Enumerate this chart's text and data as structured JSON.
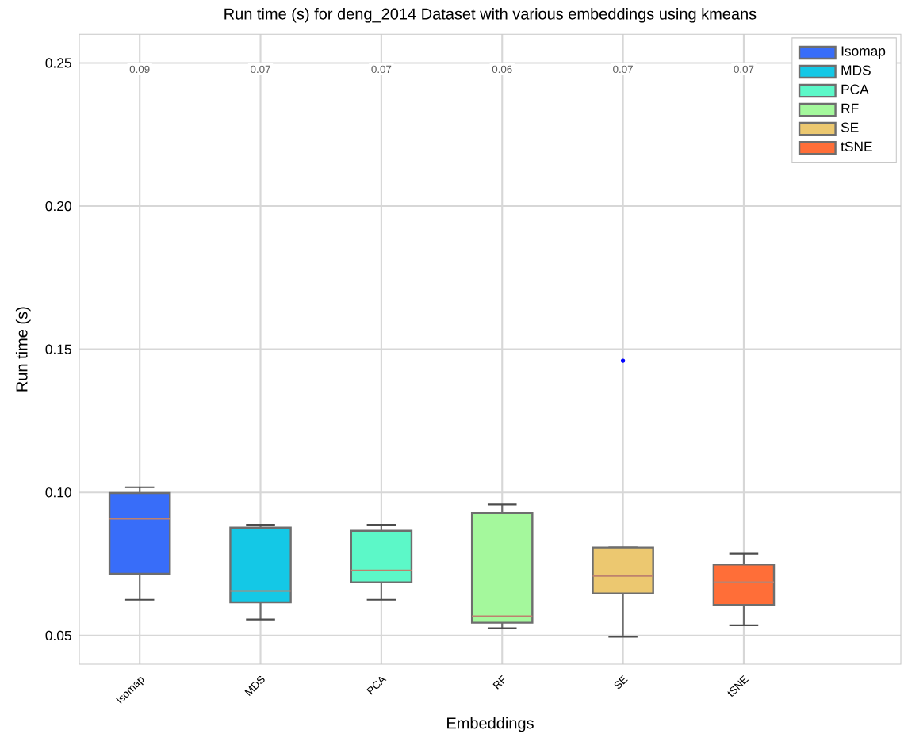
{
  "chart_data": {
    "type": "box",
    "title": "Run time (s) for deng_2014 Dataset with various embeddings using kmeans",
    "xlabel": "Embeddings",
    "ylabel": "Run time (s)",
    "categories": [
      "Isomap",
      "MDS",
      "PCA",
      "RF",
      "SE",
      "tSNE"
    ],
    "series": [
      {
        "name": "Isomap",
        "color": "#386df9",
        "boxes": [
          {
            "low": 0.0625,
            "q1": 0.0716,
            "median": 0.0908,
            "q3": 0.0998,
            "high": 0.1018
          },
          null,
          null,
          null,
          null,
          null
        ]
      },
      {
        "name": "MDS",
        "color": "#14c8e6",
        "boxes": [
          null,
          {
            "low": 0.0556,
            "q1": 0.0616,
            "median": 0.0656,
            "q3": 0.0877,
            "high": 0.0887
          },
          null,
          null,
          null,
          null
        ]
      },
      {
        "name": "PCA",
        "color": "#5cf8c8",
        "boxes": [
          null,
          null,
          {
            "low": 0.0625,
            "q1": 0.0686,
            "median": 0.0727,
            "q3": 0.0866,
            "high": 0.0887
          },
          null,
          null,
          null
        ]
      },
      {
        "name": "RF",
        "color": "#a4f89c",
        "boxes": [
          null,
          null,
          null,
          {
            "low": 0.0526,
            "q1": 0.0545,
            "median": 0.0567,
            "q3": 0.0928,
            "high": 0.0958
          },
          null,
          null
        ]
      },
      {
        "name": "SE",
        "color": "#ecc870",
        "boxes": [
          null,
          null,
          null,
          null,
          {
            "low": 0.0496,
            "q1": 0.0647,
            "median": 0.0708,
            "q3": 0.0808,
            "high": 0.0808,
            "outliers": [
              0.146
            ]
          },
          null
        ]
      },
      {
        "name": "tSNE",
        "color": "#ff6e38",
        "boxes": [
          null,
          null,
          null,
          null,
          null,
          {
            "low": 0.0536,
            "q1": 0.0607,
            "median": 0.0686,
            "q3": 0.0748,
            "high": 0.0786
          }
        ]
      }
    ],
    "value_labels": [
      "0.09",
      "0.07",
      "0.07",
      "0.06",
      "0.07",
      "0.07"
    ],
    "ylim": [
      0.04,
      0.26
    ],
    "yticks": [
      {
        "value": 0.05,
        "label": "0.05"
      },
      {
        "value": 0.1,
        "label": "0.10"
      },
      {
        "value": 0.15,
        "label": "0.15"
      },
      {
        "value": 0.2,
        "label": "0.20"
      },
      {
        "value": 0.25,
        "label": "0.25"
      }
    ],
    "grid": true,
    "legend": "top right"
  }
}
